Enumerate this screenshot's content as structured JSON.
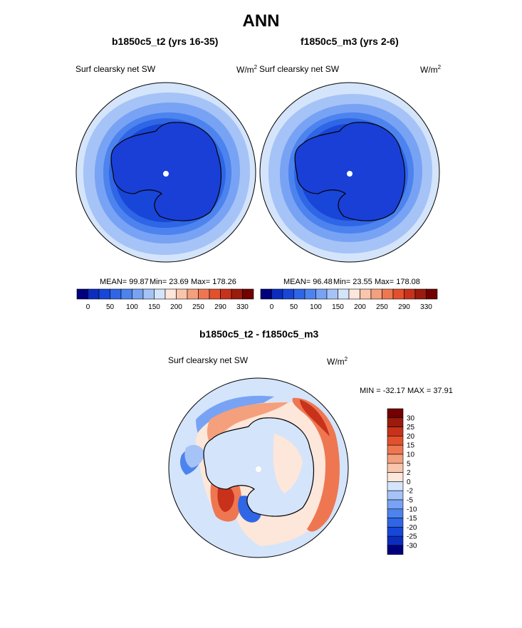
{
  "page": {
    "title": "ANN"
  },
  "colors": {
    "scale_abs": [
      "#00007f",
      "#0a2dbf",
      "#1846d8",
      "#2f66e6",
      "#4d83ee",
      "#78a3f4",
      "#a6c3f7",
      "#d4e4fa",
      "#fde6da",
      "#f9c5ac",
      "#f4a07d",
      "#ee7752",
      "#e3502c",
      "#c8321a",
      "#9b1b0c",
      "#720000"
    ],
    "scale_diff": [
      "#00007f",
      "#0a2dbf",
      "#1846d8",
      "#2f66e6",
      "#4d83ee",
      "#78a3f4",
      "#a6c3f7",
      "#d4e4fa",
      "#fde6da",
      "#f9c5ac",
      "#f4a07d",
      "#ee7752",
      "#e3502c",
      "#c8321a",
      "#9b1b0c",
      "#720000"
    ]
  },
  "chart_data": [
    {
      "type": "heatmap",
      "projection": "south-polar stereographic",
      "title": "b1850c5_t2 (yrs 16-35)",
      "variable": "Surf clearsky net SW",
      "units_base": "W/m",
      "units_exp": "2",
      "stats": {
        "mean": "MEAN=  99.87",
        "min": "Min=  23.69",
        "max": "Max= 178.26"
      },
      "colorbar": {
        "levels": [
          "0",
          "50",
          "100",
          "150",
          "200",
          "250",
          "290",
          "330"
        ]
      }
    },
    {
      "type": "heatmap",
      "projection": "south-polar stereographic",
      "title": "f1850c5_m3 (yrs 2-6)",
      "variable": "Surf clearsky net SW",
      "units_base": "W/m",
      "units_exp": "2",
      "stats": {
        "mean": "MEAN=  96.48",
        "min": "Min=  23.55",
        "max": "Max= 178.08"
      },
      "colorbar": {
        "levels": [
          "0",
          "50",
          "100",
          "150",
          "200",
          "250",
          "290",
          "330"
        ]
      }
    },
    {
      "type": "heatmap",
      "projection": "south-polar stereographic",
      "title": "b1850c5_t2 - f1850c5_m3",
      "variable": "Surf clearsky net SW",
      "units_base": "W/m",
      "units_exp": "2",
      "minmax_label": "MIN = -32.17 MAX =  37.91",
      "min": -32.17,
      "max": 37.91,
      "colorbar": {
        "levels": [
          "30",
          "25",
          "20",
          "15",
          "10",
          "5",
          "2",
          "0",
          "-2",
          "-5",
          "-10",
          "-15",
          "-20",
          "-25",
          "-30"
        ]
      }
    }
  ]
}
